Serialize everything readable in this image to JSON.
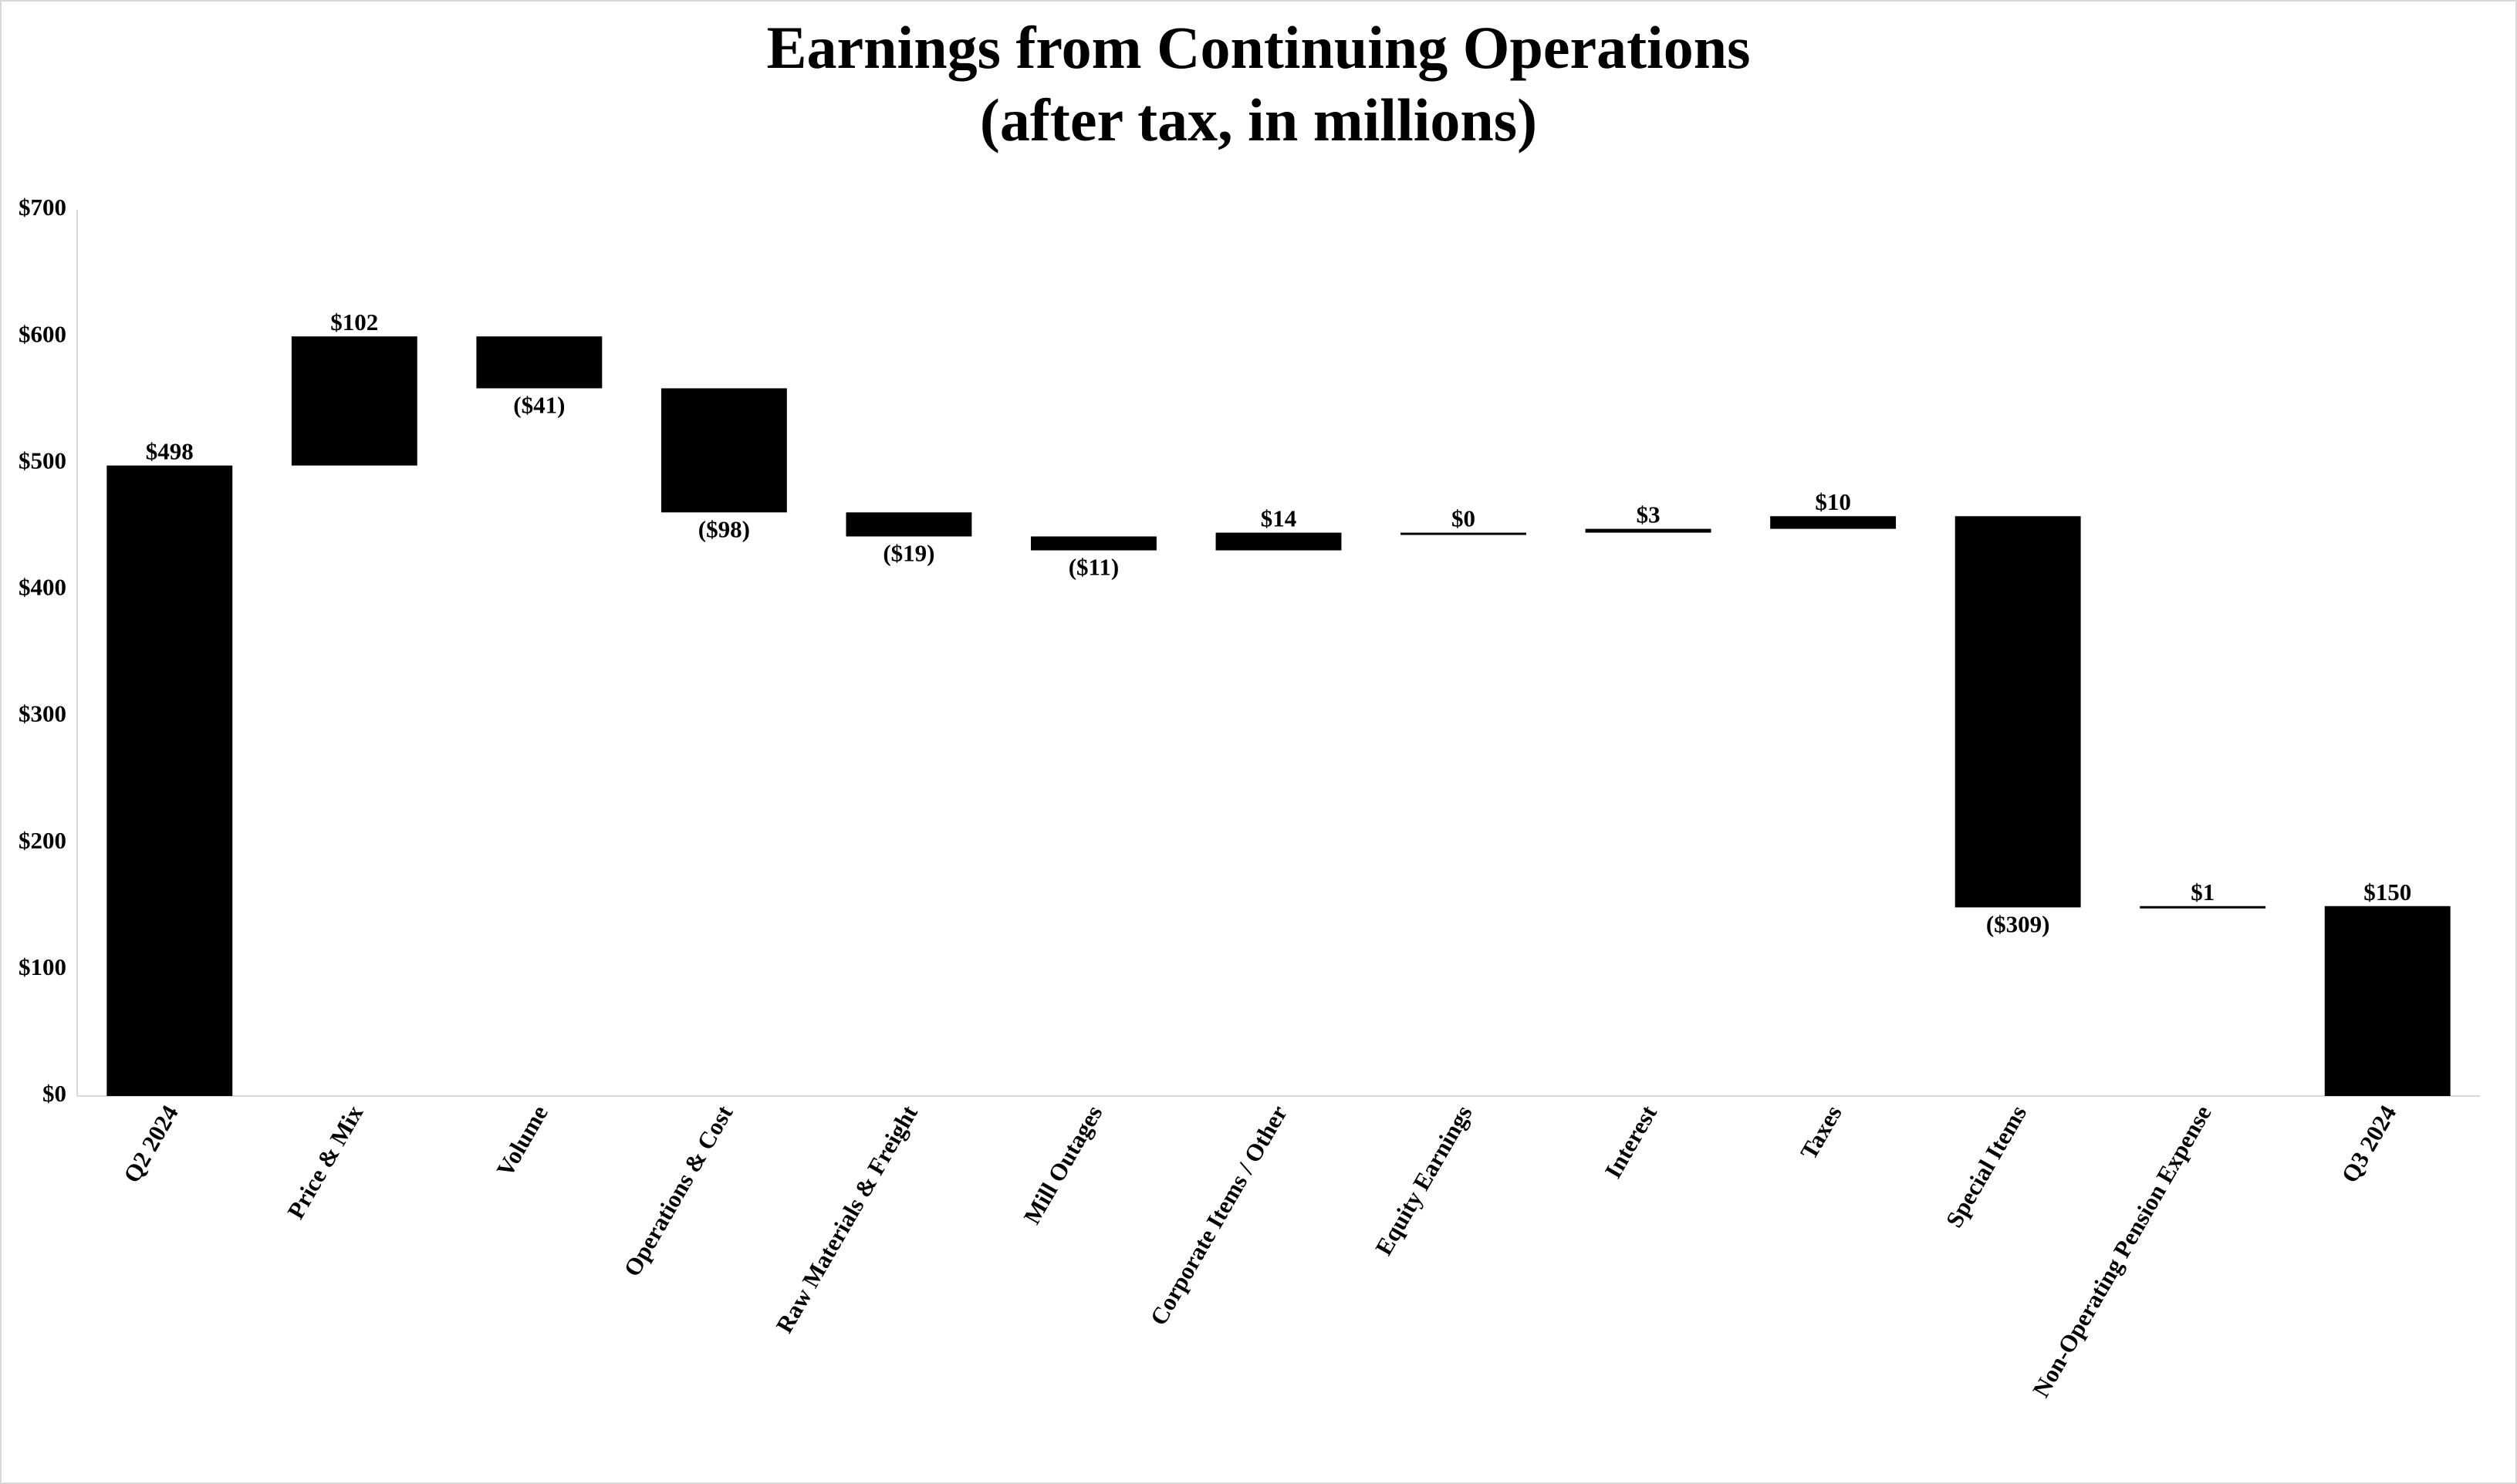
{
  "chart_data": {
    "type": "waterfall",
    "title": "Earnings from Continuing Operations",
    "subtitle": "(after tax, in millions)",
    "categories": [
      "Q2 2024",
      "Price & Mix",
      "Volume",
      "Operations & Cost",
      "Raw Materials & Freight",
      "Mill Outages",
      "Corporate Items / Other",
      "Equity Earnings",
      "Interest",
      "Taxes",
      "Special Items",
      "Non-Operating Pension Expense",
      "Q3 2024"
    ],
    "values": [
      498,
      102,
      -41,
      -98,
      -19,
      -11,
      14,
      0,
      3,
      10,
      -309,
      1,
      150
    ],
    "value_labels": [
      "$498",
      "$102",
      "($41)",
      "($98)",
      "($19)",
      "($11)",
      "$14",
      "$0",
      "$3",
      "$10",
      "($309)",
      "$1",
      "$150"
    ],
    "color": "#000000",
    "ylim": [
      0,
      700
    ],
    "yticks": [
      {
        "value": 0,
        "label": "$0"
      },
      {
        "value": 100,
        "label": "$100"
      },
      {
        "value": 200,
        "label": "$200"
      },
      {
        "value": 300,
        "label": "$300"
      },
      {
        "value": 400,
        "label": "$400"
      },
      {
        "value": 500,
        "label": "$500"
      },
      {
        "value": 600,
        "label": "$600"
      },
      {
        "value": 700,
        "label": "$700"
      }
    ],
    "grid": false
  }
}
